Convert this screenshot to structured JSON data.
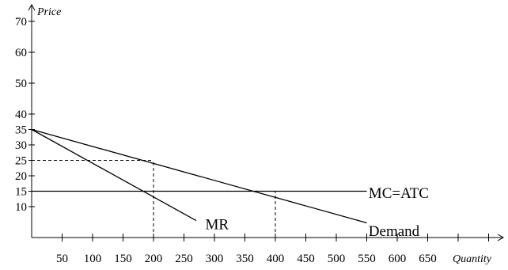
{
  "chart_data": {
    "type": "line",
    "title": "",
    "xlabel": "Quantity",
    "ylabel": "Price",
    "xlim": [
      0,
      780
    ],
    "ylim": [
      0,
      80
    ],
    "x_ticks": [
      50,
      100,
      150,
      200,
      250,
      300,
      350,
      400,
      450,
      500,
      550,
      600,
      650
    ],
    "x_tick_labels": [
      "50",
      "100",
      "150",
      "200",
      "250",
      "300",
      "350",
      "400",
      "450",
      "500",
      "550",
      "600",
      "650"
    ],
    "extra_x_ticks": [
      700,
      750
    ],
    "y_ticks": [
      10,
      15,
      20,
      25,
      30,
      35,
      40,
      50,
      60,
      70
    ],
    "y_tick_labels": [
      "10",
      "15",
      "20",
      "25",
      "30",
      "35",
      "40",
      "50",
      "60",
      "70"
    ],
    "grid": false,
    "series": [
      {
        "name": "Demand",
        "x": [
          0,
          550
        ],
        "y": [
          35,
          4.75
        ],
        "label_pos": [
          553,
          2
        ]
      },
      {
        "name": "MR",
        "x": [
          0,
          270
        ],
        "y": [
          35,
          5.5
        ],
        "label_pos": [
          285,
          4.2
        ]
      },
      {
        "name": "MC=ATC",
        "x": [
          0,
          550
        ],
        "y": [
          15,
          15
        ],
        "label_pos": [
          553,
          14.3
        ]
      }
    ],
    "guide_lines": [
      {
        "from": [
          0,
          25
        ],
        "to": [
          200,
          25
        ],
        "style": "dashed"
      },
      {
        "from": [
          200,
          0
        ],
        "to": [
          200,
          25
        ],
        "style": "dashed"
      },
      {
        "from": [
          400,
          0
        ],
        "to": [
          400,
          15
        ],
        "style": "dashed"
      }
    ]
  }
}
